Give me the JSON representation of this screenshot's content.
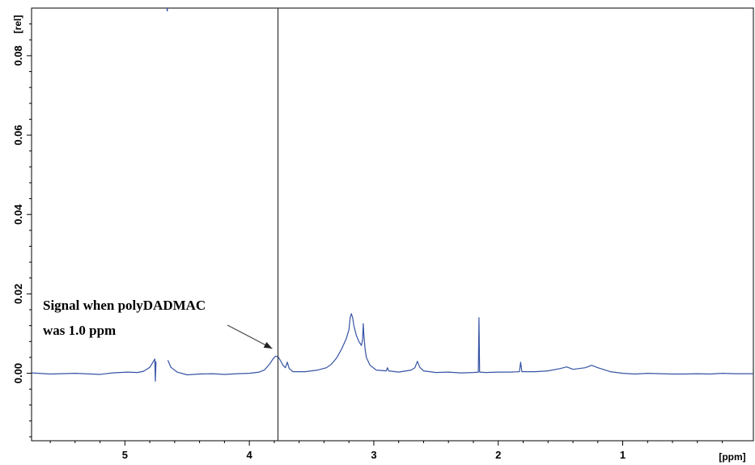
{
  "chart_data": {
    "type": "line",
    "title": "",
    "x_unit_label": "[ppm]",
    "y_unit_label": "[rel]",
    "xlim": [
      5.75,
      -0.05
    ],
    "ylim": [
      -0.017,
      0.092
    ],
    "x_reversed": true,
    "grid": false,
    "x_ticks": [
      {
        "value": 5,
        "label": "5"
      },
      {
        "value": 4,
        "label": "4"
      },
      {
        "value": 3,
        "label": "3"
      },
      {
        "value": 2,
        "label": "2"
      },
      {
        "value": 1,
        "label": "1"
      }
    ],
    "y_ticks": [
      {
        "value": 0.0,
        "label": "0.00"
      },
      {
        "value": 0.02,
        "label": "0.02"
      },
      {
        "value": 0.04,
        "label": "0.04"
      },
      {
        "value": 0.06,
        "label": "0.06"
      },
      {
        "value": 0.08,
        "label": "0.08"
      }
    ],
    "series": [
      {
        "color": "#3653a4",
        "segments": [
          [
            [
              5.75,
              0.0001
            ],
            [
              5.6,
              -0.0002
            ],
            [
              5.4,
              0.0
            ],
            [
              5.2,
              -0.0003
            ],
            [
              5.1,
              0.0001
            ],
            [
              4.98,
              0.0003
            ],
            [
              4.9,
              0.0002
            ],
            [
              4.85,
              0.0005
            ],
            [
              4.8,
              0.0015
            ],
            [
              4.77,
              0.003
            ],
            [
              4.76,
              0.0036
            ],
            [
              4.755,
              -0.002
            ],
            [
              4.75,
              0.003
            ]
          ],
          [
            [
              4.655,
              0.0033
            ],
            [
              4.63,
              0.0015
            ],
            [
              4.58,
              0.0003
            ],
            [
              4.5,
              -0.0004
            ],
            [
              4.4,
              -0.0002
            ],
            [
              4.3,
              -0.0001
            ],
            [
              4.2,
              -0.0003
            ],
            [
              4.1,
              -0.0001
            ],
            [
              4.0,
              0.0
            ],
            [
              3.92,
              0.0003
            ],
            [
              3.88,
              0.0008
            ],
            [
              3.84,
              0.0022
            ],
            [
              3.81,
              0.0036
            ],
            [
              3.79,
              0.0043
            ],
            [
              3.77,
              0.0042
            ],
            [
              3.75,
              0.0032
            ],
            [
              3.73,
              0.002
            ],
            [
              3.71,
              0.0014
            ],
            [
              3.695,
              0.0028
            ],
            [
              3.68,
              0.0012
            ],
            [
              3.65,
              0.0004
            ],
            [
              3.55,
              0.0004
            ],
            [
              3.45,
              0.0008
            ],
            [
              3.38,
              0.0014
            ],
            [
              3.34,
              0.0023
            ],
            [
              3.3,
              0.0038
            ],
            [
              3.26,
              0.006
            ],
            [
              3.22,
              0.0088
            ],
            [
              3.2,
              0.011
            ],
            [
              3.19,
              0.014
            ],
            [
              3.18,
              0.015
            ],
            [
              3.17,
              0.014
            ],
            [
              3.16,
              0.012
            ],
            [
              3.14,
              0.0095
            ],
            [
              3.12,
              0.008
            ],
            [
              3.1,
              0.007
            ],
            [
              3.09,
              0.0085
            ],
            [
              3.085,
              0.0125
            ],
            [
              3.08,
              0.0098
            ],
            [
              3.07,
              0.006
            ],
            [
              3.06,
              0.004
            ],
            [
              3.03,
              0.002
            ],
            [
              2.98,
              0.0008
            ],
            [
              2.9,
              0.0006
            ],
            [
              2.89,
              0.0014
            ],
            [
              2.88,
              0.0006
            ],
            [
              2.8,
              0.0003
            ],
            [
              2.7,
              0.0008
            ],
            [
              2.67,
              0.0014
            ],
            [
              2.65,
              0.003
            ],
            [
              2.63,
              0.0015
            ],
            [
              2.6,
              0.0006
            ],
            [
              2.5,
              0.0002
            ],
            [
              2.4,
              0.0003
            ],
            [
              2.3,
              0.0001
            ],
            [
              2.2,
              0.0002
            ],
            [
              2.16,
              0.0003
            ],
            [
              2.155,
              0.014
            ],
            [
              2.15,
              0.0003
            ],
            [
              2.1,
              0.0002
            ],
            [
              2.0,
              0.0003
            ],
            [
              1.9,
              0.0003
            ],
            [
              1.83,
              0.0004
            ],
            [
              1.82,
              0.0028
            ],
            [
              1.81,
              0.0004
            ],
            [
              1.7,
              0.0004
            ],
            [
              1.6,
              0.0006
            ],
            [
              1.5,
              0.0012
            ],
            [
              1.45,
              0.0016
            ],
            [
              1.4,
              0.001
            ],
            [
              1.3,
              0.0014
            ],
            [
              1.25,
              0.002
            ],
            [
              1.2,
              0.0014
            ],
            [
              1.1,
              0.0004
            ],
            [
              1.0,
              0.0
            ],
            [
              0.9,
              -0.0002
            ],
            [
              0.8,
              0.0
            ],
            [
              0.7,
              -0.0001
            ],
            [
              0.6,
              -0.0002
            ],
            [
              0.5,
              -0.0002
            ],
            [
              0.4,
              -0.0001
            ],
            [
              0.3,
              -0.0002
            ],
            [
              0.2,
              0.0
            ],
            [
              0.1,
              -0.0001
            ],
            [
              -0.05,
              -0.0001
            ]
          ]
        ]
      }
    ],
    "vertical_marker": {
      "x": 3.77,
      "color": "#333333"
    },
    "top_marker": {
      "x": 4.66,
      "color": "#3653a4"
    },
    "annotations": [
      {
        "lines": [
          "Signal when polyDADMAC",
          "was 1.0 ppm"
        ],
        "arrow_to": {
          "x": 3.79,
          "y": 0.005
        }
      }
    ]
  }
}
